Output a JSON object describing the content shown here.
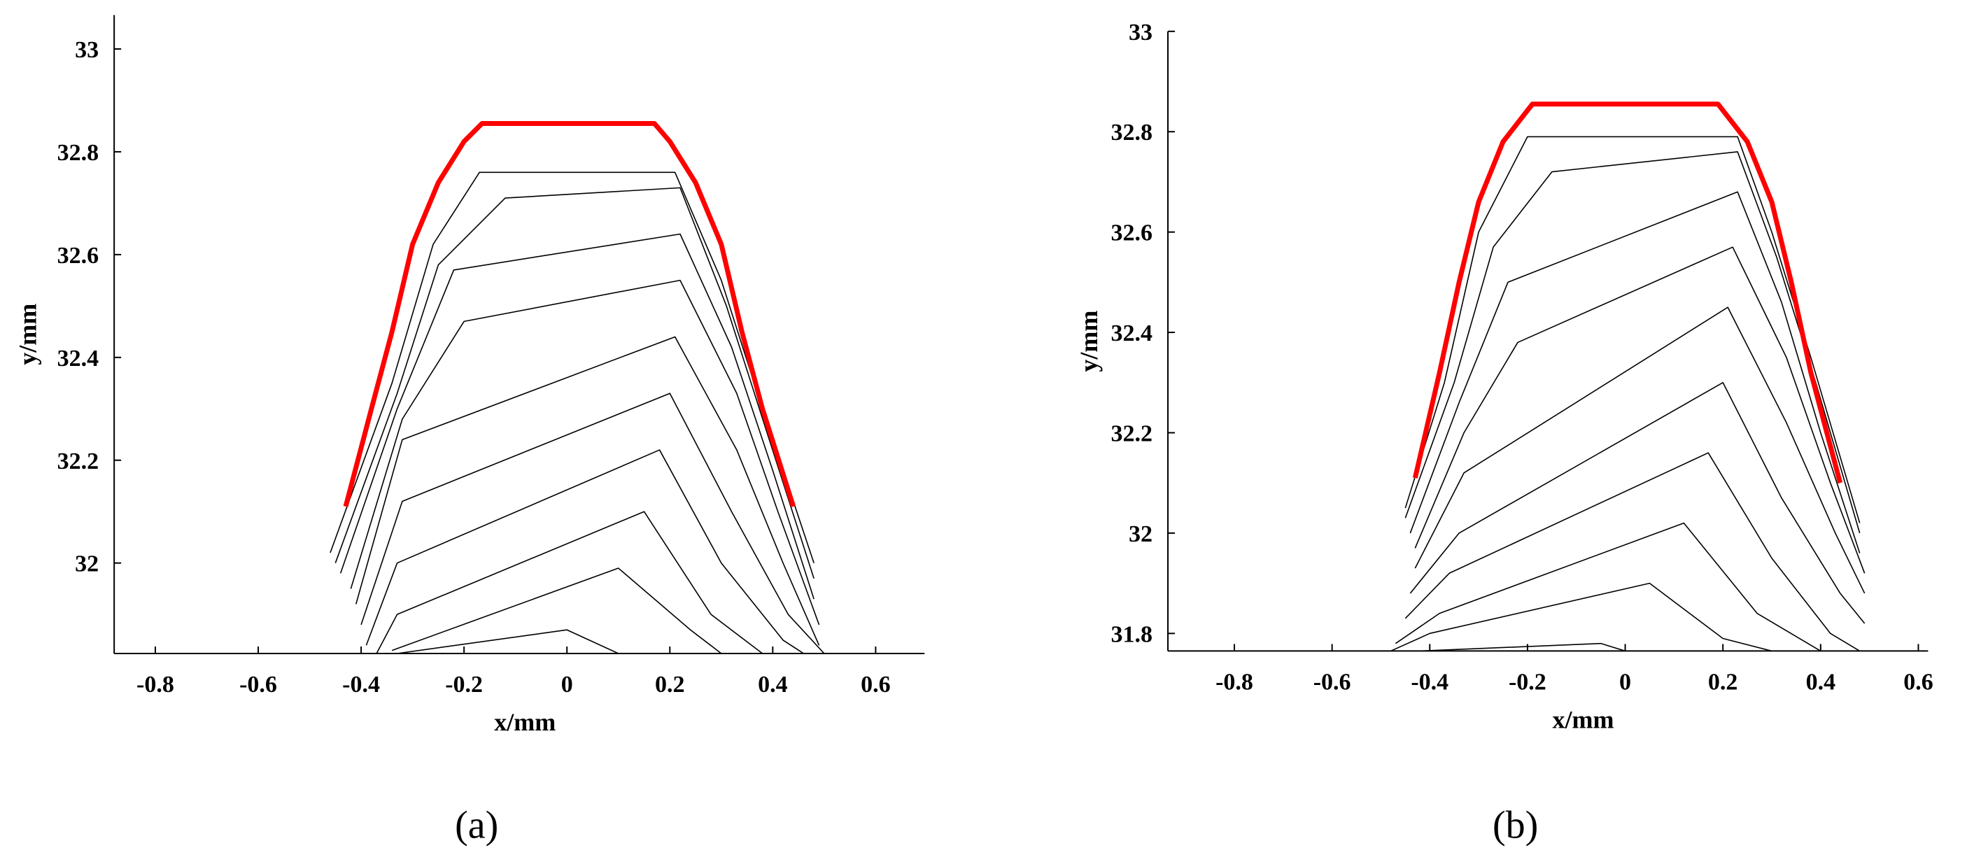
{
  "chart_data": [
    {
      "type": "line",
      "xlabel": "x/mm",
      "ylabel": "y/mm",
      "panel_label": "(a)",
      "xlim": [
        -0.88,
        0.695
      ],
      "ylim": [
        31.824,
        33.066
      ],
      "xticks": [
        -0.8,
        -0.6,
        -0.4,
        -0.2,
        0,
        0.2,
        0.4,
        0.6
      ],
      "yticks": [
        32,
        32.2,
        32.4,
        32.6,
        32.8,
        33
      ],
      "series": [
        {
          "color": "#000000",
          "line_width": 1.6,
          "x": [
            -0.46,
            -0.34,
            -0.26,
            -0.17,
            0.21,
            0.3,
            0.38,
            0.48
          ],
          "values": [
            32.02,
            32.35,
            32.62,
            32.76,
            32.76,
            32.55,
            32.3,
            32.0
          ]
        },
        {
          "color": "#000000",
          "line_width": 1.6,
          "x": [
            -0.45,
            -0.33,
            -0.25,
            -0.12,
            0.22,
            0.31,
            0.39,
            0.48
          ],
          "values": [
            32.0,
            32.33,
            32.58,
            32.71,
            32.73,
            32.5,
            32.25,
            31.97
          ]
        },
        {
          "color": "#000000",
          "line_width": 1.6,
          "x": [
            -0.44,
            -0.33,
            -0.22,
            0.22,
            0.32,
            0.4,
            0.48
          ],
          "values": [
            31.98,
            32.3,
            32.57,
            32.64,
            32.42,
            32.18,
            31.93
          ]
        },
        {
          "color": "#000000",
          "line_width": 1.6,
          "x": [
            -0.42,
            -0.32,
            -0.2,
            0.22,
            0.33,
            0.41,
            0.49
          ],
          "values": [
            31.95,
            32.28,
            32.47,
            32.55,
            32.33,
            32.1,
            31.88
          ]
        },
        {
          "color": "#000000",
          "line_width": 1.6,
          "x": [
            -0.41,
            -0.32,
            0.21,
            0.33,
            0.42,
            0.49
          ],
          "values": [
            31.92,
            32.24,
            32.44,
            32.22,
            32.0,
            31.84
          ]
        },
        {
          "color": "#000000",
          "line_width": 1.6,
          "x": [
            -0.4,
            -0.32,
            0.2,
            0.32,
            0.43,
            0.5
          ],
          "values": [
            31.88,
            32.12,
            32.33,
            32.1,
            31.9,
            31.824
          ]
        },
        {
          "color": "#000000",
          "line_width": 1.6,
          "x": [
            -0.39,
            -0.33,
            0.18,
            0.3,
            0.42,
            0.46
          ],
          "values": [
            31.84,
            32.0,
            32.22,
            32.0,
            31.85,
            31.824
          ]
        },
        {
          "color": "#000000",
          "line_width": 1.6,
          "x": [
            -0.37,
            -0.33,
            0.15,
            0.28,
            0.38
          ],
          "values": [
            31.824,
            31.9,
            32.1,
            31.9,
            31.824
          ]
        },
        {
          "color": "#000000",
          "line_width": 1.6,
          "x": [
            -0.34,
            0.1,
            0.24,
            0.3
          ],
          "values": [
            31.83,
            31.99,
            31.87,
            31.824
          ]
        },
        {
          "color": "#000000",
          "line_width": 1.6,
          "x": [
            -0.33,
            0.0,
            0.1
          ],
          "values": [
            31.824,
            31.87,
            31.824
          ]
        },
        {
          "color": "#ff0000",
          "line_width": 7,
          "x": [
            -0.43,
            -0.38,
            -0.34,
            -0.3,
            -0.25,
            -0.2,
            -0.165,
            0.17,
            0.2,
            0.25,
            0.3,
            0.34,
            0.38,
            0.44
          ],
          "values": [
            32.11,
            32.3,
            32.45,
            32.62,
            32.74,
            32.82,
            32.855,
            32.855,
            32.82,
            32.74,
            32.62,
            32.45,
            32.3,
            32.11
          ]
        }
      ]
    },
    {
      "type": "line",
      "xlabel": "x/mm",
      "ylabel": "y/mm",
      "panel_label": "(b)",
      "xlim": [
        -0.936,
        0.62
      ],
      "ylim": [
        31.765,
        33
      ],
      "xticks": [
        -0.8,
        -0.6,
        -0.4,
        -0.2,
        0,
        0.2,
        0.4,
        0.6
      ],
      "yticks": [
        31.8,
        32,
        32.2,
        32.4,
        32.6,
        32.8,
        33
      ],
      "series": [
        {
          "color": "#000000",
          "line_width": 1.6,
          "x": [
            -0.45,
            -0.37,
            -0.3,
            -0.2,
            0.23,
            0.3,
            0.38,
            0.48
          ],
          "values": [
            32.05,
            32.3,
            32.6,
            32.79,
            32.79,
            32.6,
            32.35,
            32.02
          ]
        },
        {
          "color": "#000000",
          "line_width": 1.6,
          "x": [
            -0.45,
            -0.35,
            -0.27,
            -0.15,
            0.23,
            0.31,
            0.39,
            0.48
          ],
          "values": [
            32.03,
            32.3,
            32.57,
            32.72,
            32.76,
            32.55,
            32.3,
            32.0
          ]
        },
        {
          "color": "#000000",
          "line_width": 1.6,
          "x": [
            -0.44,
            -0.34,
            -0.24,
            0.23,
            0.32,
            0.4,
            0.48
          ],
          "values": [
            32.0,
            32.26,
            32.5,
            32.68,
            32.46,
            32.2,
            31.96
          ]
        },
        {
          "color": "#000000",
          "line_width": 1.6,
          "x": [
            -0.43,
            -0.33,
            -0.22,
            0.22,
            0.33,
            0.42,
            0.49
          ],
          "values": [
            31.97,
            32.2,
            32.38,
            32.57,
            32.35,
            32.1,
            31.92
          ]
        },
        {
          "color": "#000000",
          "line_width": 1.6,
          "x": [
            -0.43,
            -0.33,
            0.21,
            0.33,
            0.43,
            0.49
          ],
          "values": [
            31.93,
            32.12,
            32.45,
            32.22,
            32.0,
            31.88
          ]
        },
        {
          "color": "#000000",
          "line_width": 1.6,
          "x": [
            -0.44,
            -0.34,
            0.2,
            0.32,
            0.44,
            0.49
          ],
          "values": [
            31.88,
            32.0,
            32.3,
            32.07,
            31.88,
            31.82
          ]
        },
        {
          "color": "#000000",
          "line_width": 1.6,
          "x": [
            -0.45,
            -0.36,
            0.17,
            0.3,
            0.42,
            0.48
          ],
          "values": [
            31.83,
            31.92,
            32.16,
            31.95,
            31.8,
            31.765
          ]
        },
        {
          "color": "#000000",
          "line_width": 1.6,
          "x": [
            -0.47,
            -0.38,
            0.12,
            0.27,
            0.4
          ],
          "values": [
            31.78,
            31.84,
            32.02,
            31.84,
            31.765
          ]
        },
        {
          "color": "#000000",
          "line_width": 1.6,
          "x": [
            -0.48,
            -0.4,
            0.05,
            0.2,
            0.3
          ],
          "values": [
            31.765,
            31.8,
            31.9,
            31.79,
            31.765
          ]
        },
        {
          "color": "#000000",
          "line_width": 1.6,
          "x": [
            -0.42,
            -0.05,
            0.0
          ],
          "values": [
            31.765,
            31.78,
            31.765
          ]
        },
        {
          "color": "#ff0000",
          "line_width": 7,
          "x": [
            -0.43,
            -0.38,
            -0.34,
            -0.3,
            -0.25,
            -0.19,
            0.19,
            0.25,
            0.3,
            0.34,
            0.38,
            0.44
          ],
          "values": [
            32.11,
            32.32,
            32.5,
            32.66,
            32.78,
            32.855,
            32.855,
            32.78,
            32.66,
            32.5,
            32.32,
            32.1
          ]
        }
      ]
    }
  ]
}
